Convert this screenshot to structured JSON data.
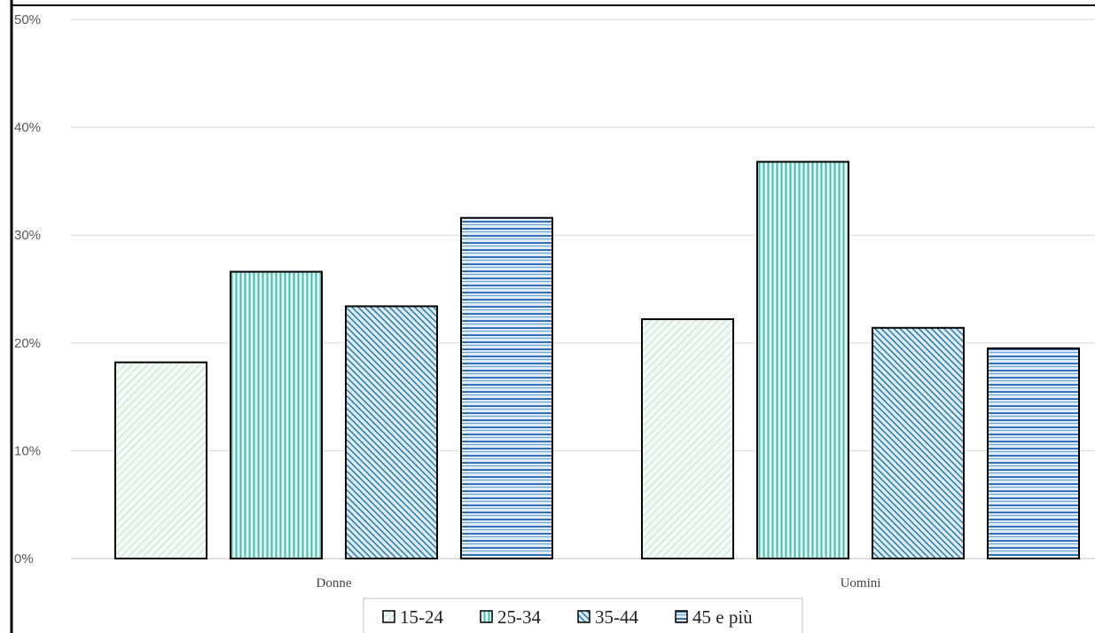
{
  "chart_data": {
    "type": "bar",
    "categories": [
      "Donne",
      "Uomini"
    ],
    "series": [
      {
        "name": "15-24",
        "values": [
          18.2,
          22.2
        ],
        "color": "#d9f2e6",
        "pattern": "diagonal-light"
      },
      {
        "name": "25-34",
        "values": [
          26.6,
          36.8
        ],
        "color": "#3fbfad",
        "pattern": "vertical"
      },
      {
        "name": "35-44",
        "values": [
          23.4,
          21.4
        ],
        "color": "#2a7bb0",
        "pattern": "diagonal-dense"
      },
      {
        "name": "45 e più",
        "values": [
          31.6,
          19.5
        ],
        "color": "#2f72b8",
        "pattern": "horizontal"
      }
    ],
    "ylim": [
      0,
      50
    ],
    "yticks": [
      "0%",
      "10%",
      "20%",
      "30%",
      "40%",
      "50%"
    ],
    "grid": true,
    "legend_position": "bottom",
    "title": "",
    "xlabel": "",
    "ylabel": ""
  }
}
